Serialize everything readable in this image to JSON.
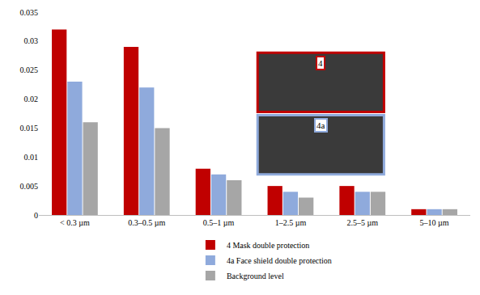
{
  "chart_data": {
    "type": "bar",
    "categories": [
      "< 0.3 µm",
      "0.3–0.5 µm",
      "0.5–1 µm",
      "1–2.5 µm",
      "2.5–5 µm",
      "5–10 µm"
    ],
    "series": [
      {
        "name": "4 Mask double protection",
        "color": "#c00000",
        "values": [
          0.032,
          0.029,
          0.008,
          0.005,
          0.005,
          0.001
        ]
      },
      {
        "name": "4a Face shield double protection",
        "color": "#8faadc",
        "values": [
          0.023,
          0.022,
          0.007,
          0.004,
          0.004,
          0.001
        ]
      },
      {
        "name": "Background level",
        "color": "#a6a6a6",
        "values": [
          0.016,
          0.015,
          0.006,
          0.003,
          0.004,
          0.001
        ]
      }
    ],
    "annotations": [
      "4",
      "4a"
    ],
    "ylim": [
      0,
      0.035
    ],
    "yticks": [
      0,
      0.005,
      0.01,
      0.015,
      0.02,
      0.025,
      0.03,
      0.035
    ],
    "grid": false,
    "legend": "bottom"
  }
}
